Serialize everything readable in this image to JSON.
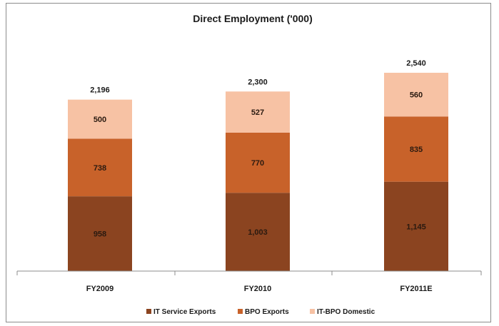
{
  "chart_data": {
    "type": "bar",
    "stacked": true,
    "title": "Direct Employment ('000)",
    "categories": [
      "FY2009",
      "FY2010",
      "FY2011E"
    ],
    "series": [
      {
        "name": "IT Service Exports",
        "color": "#8b4420",
        "values": [
          958,
          1003,
          1145
        ],
        "labels": [
          "958",
          "1,003",
          "1,145"
        ]
      },
      {
        "name": "BPO Exports",
        "color": "#c8622a",
        "values": [
          738,
          770,
          835
        ],
        "labels": [
          "738",
          "770",
          "835"
        ]
      },
      {
        "name": "IT-BPO Domestic",
        "color": "#f7c2a4",
        "values": [
          500,
          527,
          560
        ],
        "labels": [
          "500",
          "527",
          "560"
        ]
      }
    ],
    "totals": [
      "2,196",
      "2,300",
      "2,540"
    ],
    "legend_position": "bottom",
    "grid": false
  }
}
